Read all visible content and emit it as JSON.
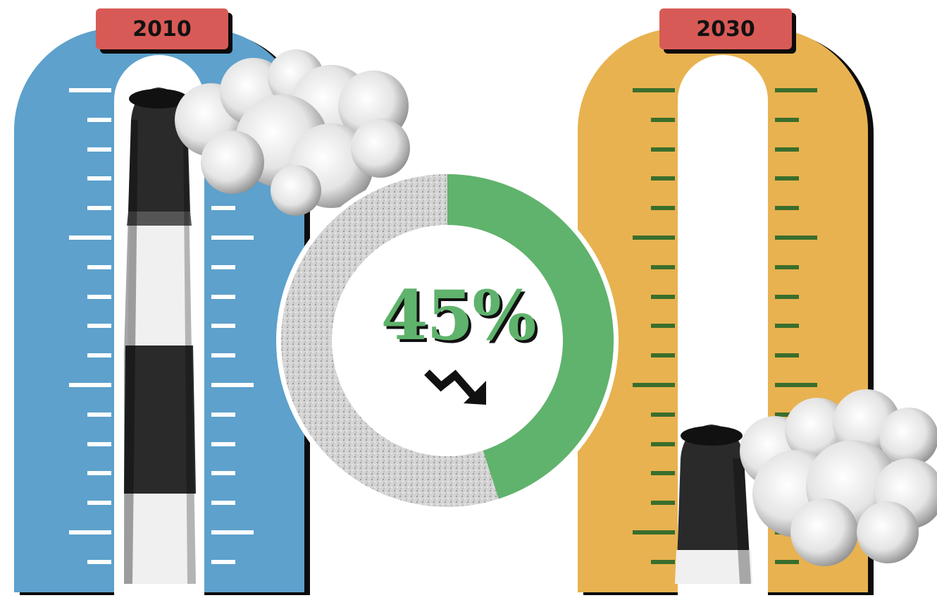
{
  "gauges": [
    {
      "year": "2010",
      "body_color": "#5da1cc",
      "tick_color": "#ffffff"
    },
    {
      "year": "2030",
      "body_color": "#e8b250",
      "tick_color": "#3a6e2c"
    }
  ],
  "reduction": {
    "label": "45%",
    "value_percent": 45,
    "accent_color": "#5fb36c",
    "remaining_color": "#d9d9d9"
  },
  "icons": {
    "trend": "trending-down-arrow-icon",
    "stack": "smokestack-icon",
    "cloud": "smoke-cloud-icon"
  }
}
